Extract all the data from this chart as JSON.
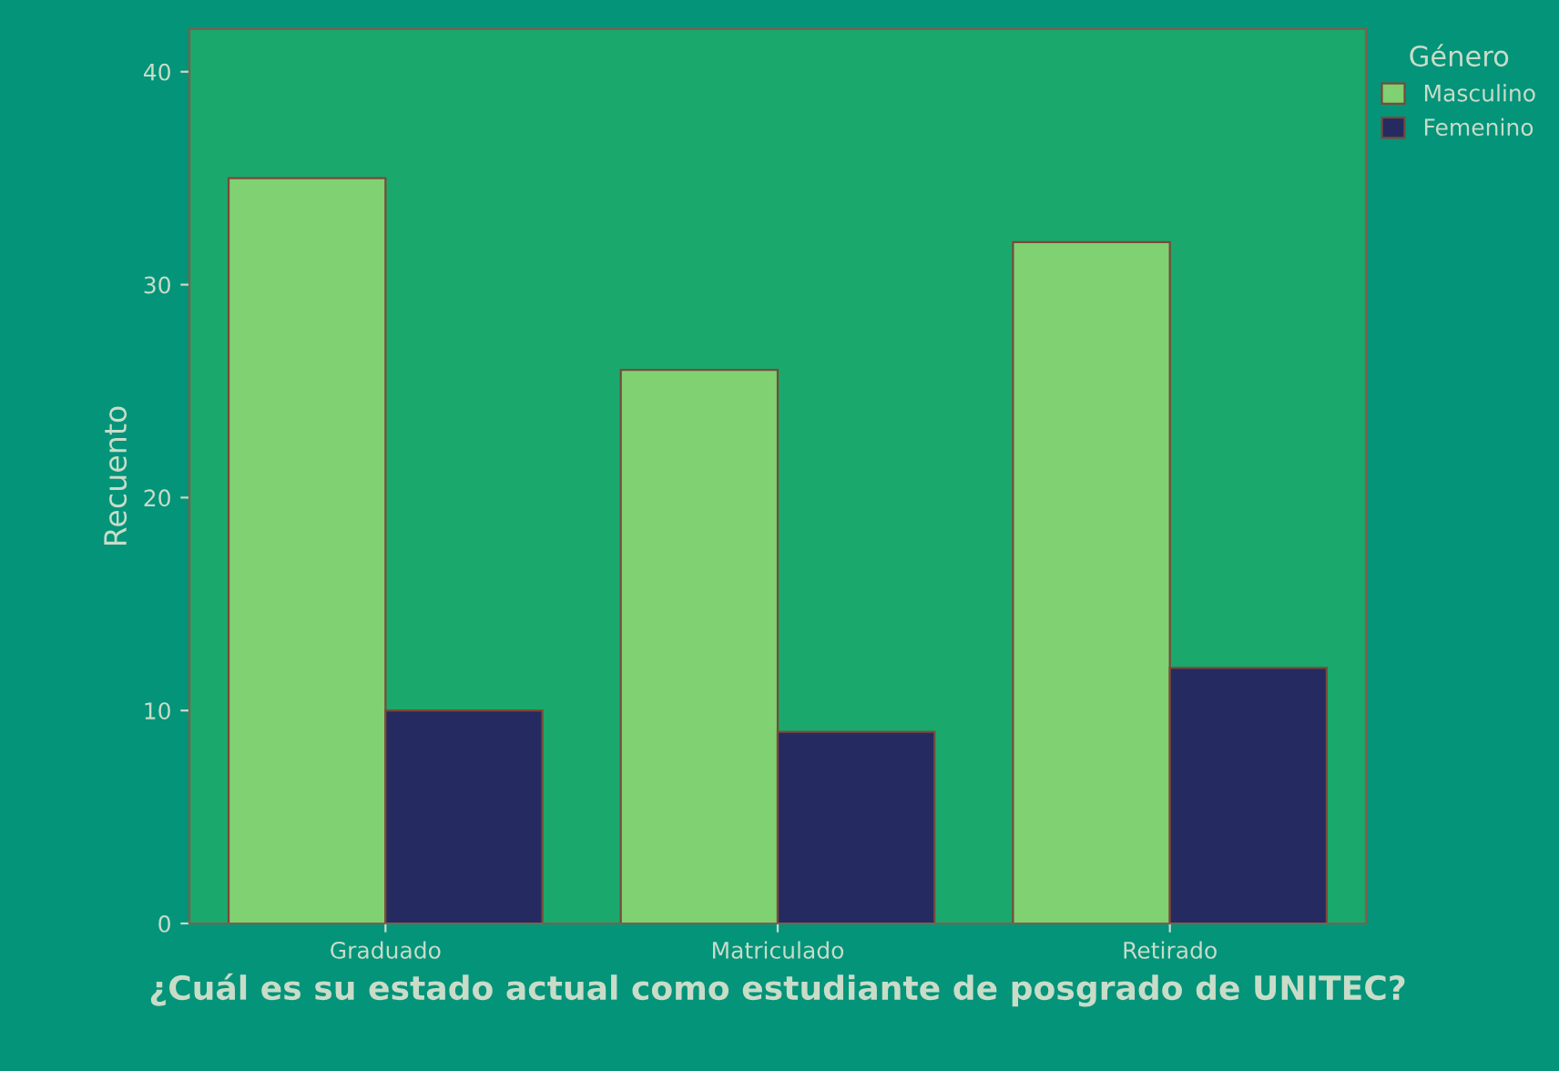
{
  "chart_data": {
    "type": "bar",
    "xlabel": "¿Cuál es su estado actual como estudiante de posgrado de UNITEC?",
    "ylabel": "Recuento",
    "legend_title": "Género",
    "categories": [
      "Graduado",
      "Matriculado",
      "Retirado"
    ],
    "series": [
      {
        "name": "Masculino",
        "color": "#80d172",
        "values": [
          35,
          26,
          32
        ]
      },
      {
        "name": "Femenino",
        "color": "#252b60",
        "values": [
          10,
          9,
          12
        ]
      }
    ],
    "ylim": [
      0,
      42
    ],
    "yticks": [
      0,
      10,
      20,
      30,
      40
    ],
    "grid": false,
    "legend": "top right"
  }
}
